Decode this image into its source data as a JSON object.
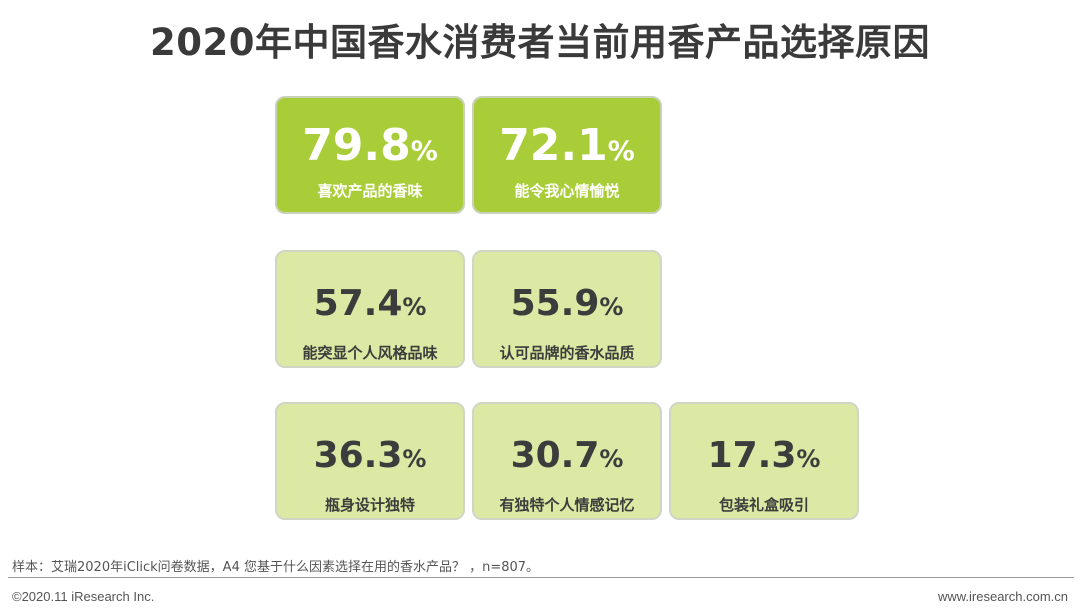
{
  "title": "2020年中国香水消费者当前用香产品选择原因",
  "chart_data": {
    "type": "table",
    "title": "2020年中国香水消费者当前用香产品选择原因",
    "unit": "%",
    "items": [
      {
        "label": "喜欢产品的香味",
        "value": 79.8,
        "display": "79.8",
        "emphasis": "dark"
      },
      {
        "label": "能令我心情愉悦",
        "value": 72.1,
        "display": "72.1",
        "emphasis": "dark"
      },
      {
        "label": "能突显个人风格品味",
        "value": 57.4,
        "display": "57.4",
        "emphasis": "light"
      },
      {
        "label": "认可品牌的香水品质",
        "value": 55.9,
        "display": "55.9",
        "emphasis": "light"
      },
      {
        "label": "瓶身设计独特",
        "value": 36.3,
        "display": "36.3",
        "emphasis": "light"
      },
      {
        "label": "有独特个人情感记忆",
        "value": 30.7,
        "display": "30.7",
        "emphasis": "light"
      },
      {
        "label": "包装礼盒吸引",
        "value": 17.3,
        "display": "17.3",
        "emphasis": "light"
      }
    ],
    "colors": {
      "dark": "#a9cd38",
      "light": "#dbe9a4"
    }
  },
  "footer": {
    "note": "样本：艾瑞2020年iClick问卷数据，A4 您基于什么因素选择在用的香水产品？ ，n=807。",
    "copyright": "©2020.11 iResearch Inc.",
    "website": "www.iresearch.com.cn"
  }
}
